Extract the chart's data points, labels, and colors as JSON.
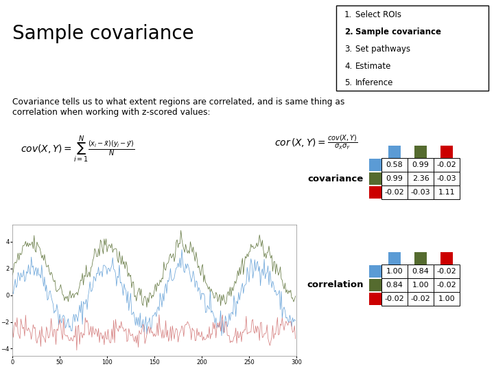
{
  "title": "Sample covariance",
  "title_fontsize": 20,
  "bg_color": "#ffffff",
  "list_items": [
    "Select ROIs",
    "Sample covariance",
    "Set pathways",
    "Estimate",
    "Inference"
  ],
  "bold_item": 1,
  "description": "Covariance tells us to what extent regions are correlated, and is same thing as\ncorrelation when working with z-scored values:",
  "colors": {
    "blue": "#5b9bd5",
    "green": "#556b2f",
    "red": "#cc0000"
  },
  "cov_matrix": [
    [
      0.58,
      0.99,
      -0.02
    ],
    [
      0.99,
      2.36,
      -0.03
    ],
    [
      -0.02,
      -0.03,
      1.11
    ]
  ],
  "cor_matrix": [
    [
      1.0,
      0.84,
      -0.02
    ],
    [
      0.84,
      1.0,
      -0.02
    ],
    [
      -0.02,
      -0.02,
      1.0
    ]
  ],
  "time_series_seed": 42,
  "n_points": 300
}
